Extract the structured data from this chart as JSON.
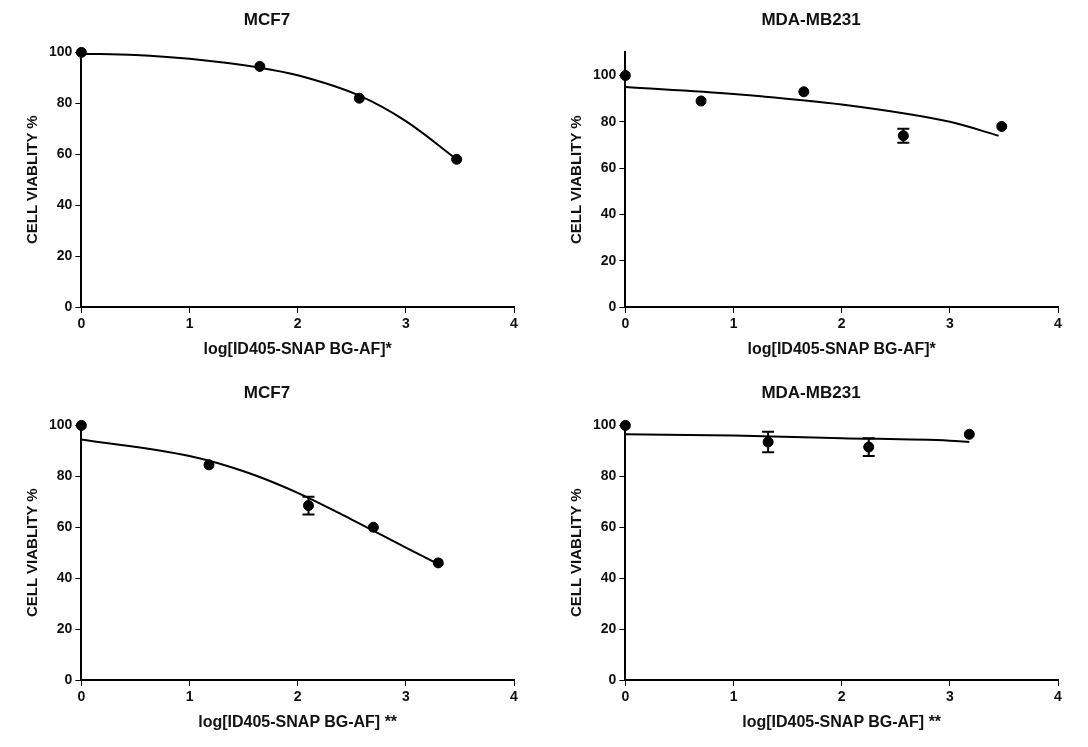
{
  "chart_data": [
    {
      "type": "scatter",
      "title": "MCF7",
      "xlabel": "log[ID405-SNAP BG-AF]*",
      "ylabel": "CELL VIABLITY %",
      "xlim": [
        0,
        4
      ],
      "xticks": [
        0,
        1,
        2,
        3,
        4
      ],
      "ylim": [
        0,
        100
      ],
      "yticks": [
        0,
        20,
        40,
        60,
        80,
        100
      ],
      "series": [
        {
          "marker": "circle",
          "color": "#000000",
          "x": [
            0,
            1.65,
            2.57,
            3.47
          ],
          "values": [
            100,
            94.5,
            82,
            58
          ]
        },
        {
          "type": "line",
          "marker": "none",
          "color": "#000000",
          "x": [
            0,
            0.5,
            1,
            1.65,
            2,
            2.57,
            3,
            3.47
          ],
          "values": [
            99.5,
            99,
            97.5,
            94,
            91,
            83,
            73,
            58
          ]
        }
      ]
    },
    {
      "type": "scatter",
      "title": "MDA-MB231",
      "xlabel": "log[ID405-SNAP BG-AF]*",
      "ylabel": "CELL VIABLITY %",
      "xlim": [
        0,
        4
      ],
      "xticks": [
        0,
        1,
        2,
        3,
        4
      ],
      "ylim": [
        0,
        110
      ],
      "yticks": [
        0,
        20,
        40,
        60,
        80,
        100
      ],
      "series": [
        {
          "marker": "circle",
          "color": "#000000",
          "x": [
            0,
            0.7,
            1.65,
            2.57,
            3.48
          ],
          "values": [
            100,
            89,
            93,
            74,
            78
          ],
          "errors": [
            null,
            null,
            null,
            3,
            null
          ]
        },
        {
          "type": "line",
          "marker": "none",
          "color": "#000000",
          "x": [
            0,
            1,
            2,
            3,
            3.45
          ],
          "values": [
            95,
            92,
            87.5,
            80,
            74
          ]
        }
      ]
    },
    {
      "type": "scatter",
      "title": "MCF7",
      "xlabel": "log[ID405-SNAP BG-AF] **",
      "ylabel": "CELL VIABLITY %",
      "xlim": [
        0,
        4
      ],
      "xticks": [
        0,
        1,
        2,
        3,
        4
      ],
      "ylim": [
        0,
        100
      ],
      "yticks": [
        0,
        20,
        40,
        60,
        80,
        100
      ],
      "series": [
        {
          "marker": "circle",
          "color": "#000000",
          "x": [
            0,
            1.18,
            2.1,
            2.7,
            3.3
          ],
          "values": [
            100,
            84.5,
            68.5,
            60,
            46
          ],
          "errors": [
            null,
            null,
            3.5,
            null,
            null
          ]
        },
        {
          "type": "line",
          "marker": "none",
          "color": "#000000",
          "x": [
            0,
            1,
            1.5,
            2,
            2.5,
            3,
            3.3
          ],
          "values": [
            94.5,
            88,
            82,
            73.5,
            63,
            52,
            45.5
          ]
        }
      ]
    },
    {
      "type": "scatter",
      "title": "MDA-MB231",
      "xlabel": "log[ID405-SNAP BG-AF] **",
      "ylabel": "CELL VIABLITY %",
      "xlim": [
        0,
        4
      ],
      "xticks": [
        0,
        1,
        2,
        3,
        4
      ],
      "ylim": [
        0,
        100
      ],
      "yticks": [
        0,
        20,
        40,
        60,
        80,
        100
      ],
      "series": [
        {
          "marker": "circle",
          "color": "#000000",
          "x": [
            0,
            1.32,
            2.25,
            3.18
          ],
          "values": [
            100,
            93.5,
            91.5,
            96.5
          ],
          "errors": [
            null,
            4,
            3.5,
            null
          ]
        },
        {
          "type": "line",
          "marker": "none",
          "color": "#000000",
          "x": [
            0,
            1,
            2,
            3,
            3.18
          ],
          "values": [
            96.5,
            96,
            95,
            94,
            93.5
          ]
        }
      ]
    }
  ]
}
